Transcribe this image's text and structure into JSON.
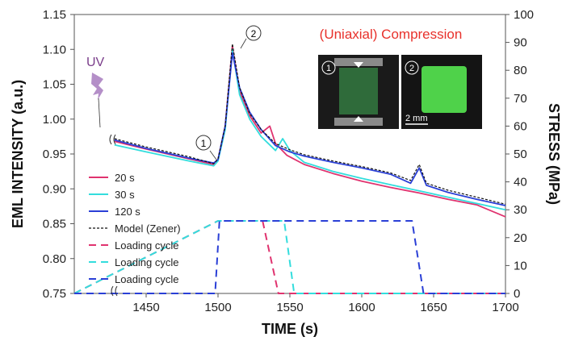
{
  "chart_data": {
    "type": "line",
    "title": "(Uniaxial) Compression",
    "xlabel": "TIME (s)",
    "ylabel": "EML INTENSITY (a.u.)",
    "y2label": "STRESS (MPa)",
    "xlim": [
      1400,
      1700
    ],
    "ylim": [
      0.75,
      1.15
    ],
    "y2lim": [
      0,
      100
    ],
    "xticks": [
      "1450",
      "1500",
      "1550",
      "1600",
      "1650",
      "1700"
    ],
    "yticks": [
      "0.75",
      "0.80",
      "0.85",
      "0.90",
      "0.95",
      "1.00",
      "1.05",
      "1.10",
      "1.15"
    ],
    "y2ticks": [
      "0",
      "10",
      "20",
      "30",
      "40",
      "50",
      "60",
      "70",
      "80",
      "90",
      "100"
    ],
    "uv_label": "UV",
    "markers": [
      "1",
      "2"
    ],
    "inset": {
      "scale_label": "2 mm",
      "panels": [
        "1",
        "2"
      ]
    },
    "legend_position": "bottom-left",
    "series": [
      {
        "name": "20 s",
        "axis": "left",
        "color": "#e0336f",
        "style": "solid",
        "x": [
          1428,
          1450,
          1480,
          1497,
          1500,
          1505,
          1510,
          1515,
          1522,
          1530,
          1536,
          1540,
          1548,
          1560,
          1580,
          1600,
          1620,
          1640,
          1660,
          1680,
          1700
        ],
        "y": [
          0.968,
          0.957,
          0.943,
          0.935,
          0.942,
          0.99,
          1.105,
          1.04,
          1.005,
          0.98,
          0.99,
          0.965,
          0.948,
          0.935,
          0.922,
          0.911,
          0.902,
          0.894,
          0.885,
          0.877,
          0.86
        ]
      },
      {
        "name": "30 s",
        "axis": "left",
        "color": "#33dddd",
        "style": "solid",
        "x": [
          1428,
          1450,
          1480,
          1497,
          1500,
          1505,
          1510,
          1515,
          1522,
          1530,
          1540,
          1545,
          1550,
          1560,
          1580,
          1600,
          1620,
          1640,
          1660,
          1680,
          1700
        ],
        "y": [
          0.963,
          0.953,
          0.94,
          0.933,
          0.94,
          0.985,
          1.1,
          1.035,
          1.0,
          0.975,
          0.955,
          0.972,
          0.955,
          0.938,
          0.925,
          0.915,
          0.906,
          0.897,
          0.888,
          0.879,
          0.87
        ]
      },
      {
        "name": "120 s",
        "axis": "left",
        "color": "#2a3fd6",
        "style": "solid",
        "x": [
          1428,
          1450,
          1480,
          1497,
          1500,
          1505,
          1510,
          1515,
          1522,
          1530,
          1540,
          1550,
          1560,
          1580,
          1600,
          1620,
          1634,
          1640,
          1645,
          1660,
          1680,
          1700
        ],
        "y": [
          0.97,
          0.958,
          0.944,
          0.937,
          0.942,
          0.99,
          1.095,
          1.045,
          1.01,
          0.985,
          0.962,
          0.953,
          0.947,
          0.938,
          0.93,
          0.921,
          0.908,
          0.93,
          0.905,
          0.895,
          0.885,
          0.876
        ]
      },
      {
        "name": "Model (Zener)",
        "axis": "left",
        "color": "#111111",
        "style": "dotted",
        "x": [
          1428,
          1450,
          1480,
          1497,
          1500,
          1505,
          1510,
          1515,
          1522,
          1530,
          1540,
          1550,
          1560,
          1580,
          1600,
          1620,
          1634,
          1640,
          1645,
          1660,
          1680,
          1700
        ],
        "y": [
          0.972,
          0.96,
          0.946,
          0.936,
          0.943,
          0.99,
          1.108,
          1.045,
          1.008,
          0.985,
          0.965,
          0.956,
          0.949,
          0.94,
          0.932,
          0.923,
          0.912,
          0.935,
          0.908,
          0.898,
          0.888,
          0.878
        ]
      },
      {
        "name": "Loading cycle",
        "axis": "right",
        "color": "#e0336f",
        "style": "dashed",
        "x": [
          1400,
          1500,
          1531,
          1542,
          1700
        ],
        "y": [
          0,
          26,
          26,
          0,
          0
        ]
      },
      {
        "name": "Loading cycle",
        "axis": "right",
        "color": "#33dddd",
        "style": "dashed",
        "x": [
          1400,
          1500,
          1546,
          1553,
          1700
        ],
        "y": [
          0,
          26,
          26,
          0,
          0
        ]
      },
      {
        "name": "Loading cycle",
        "axis": "right",
        "color": "#2a3fd6",
        "style": "dashed",
        "x": [
          1400,
          1498,
          1501,
          1635,
          1643,
          1700
        ],
        "y": [
          0,
          0,
          26,
          26,
          0,
          0
        ]
      }
    ]
  }
}
